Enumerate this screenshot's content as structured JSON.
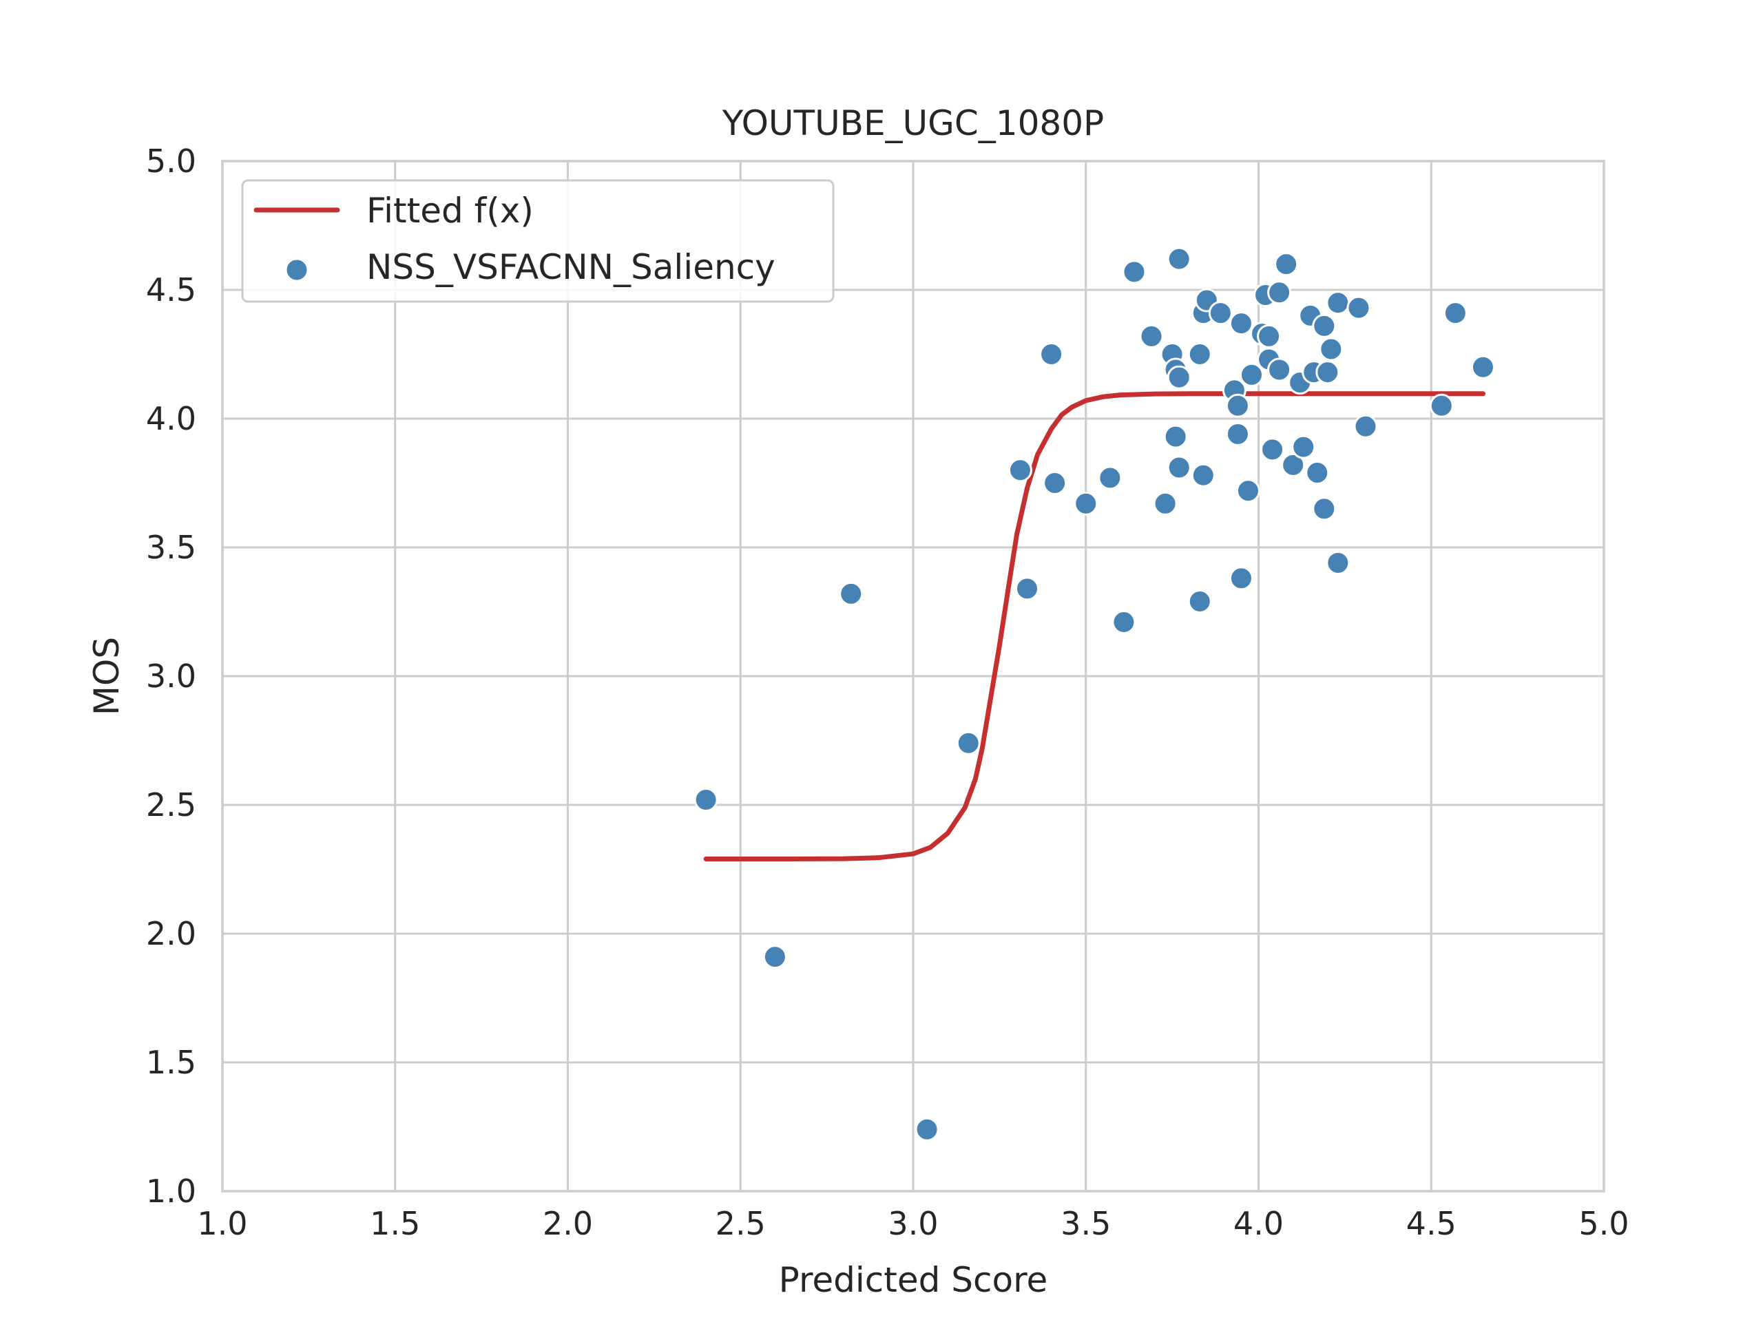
{
  "chart_data": {
    "type": "scatter",
    "title": "YOUTUBE_UGC_1080P",
    "xlabel": "Predicted Score",
    "ylabel": "MOS",
    "xlim": [
      1.0,
      5.0
    ],
    "ylim": [
      1.0,
      5.0
    ],
    "xticks": [
      "1.0",
      "1.5",
      "2.0",
      "2.5",
      "3.0",
      "3.5",
      "4.0",
      "4.5",
      "5.0"
    ],
    "yticks": [
      "1.0",
      "1.5",
      "2.0",
      "2.5",
      "3.0",
      "3.5",
      "4.0",
      "4.5",
      "5.0"
    ],
    "grid": true,
    "legend_position": "top-left",
    "colors": {
      "fit": "#c62f2f",
      "points": "#4682b4",
      "point_edge": "#ffffff"
    },
    "fit": {
      "name": "Fitted f(x)",
      "x": [
        2.4,
        2.6,
        2.8,
        2.9,
        3.0,
        3.05,
        3.1,
        3.15,
        3.18,
        3.2,
        3.22,
        3.25,
        3.28,
        3.3,
        3.33,
        3.36,
        3.4,
        3.43,
        3.46,
        3.5,
        3.55,
        3.6,
        3.7,
        3.8,
        4.0,
        4.2,
        4.4,
        4.65
      ],
      "y": [
        2.29,
        2.29,
        2.291,
        2.295,
        2.31,
        2.335,
        2.39,
        2.49,
        2.6,
        2.72,
        2.88,
        3.12,
        3.38,
        3.55,
        3.73,
        3.86,
        3.96,
        4.015,
        4.045,
        4.07,
        4.085,
        4.092,
        4.096,
        4.097,
        4.097,
        4.097,
        4.097,
        4.097
      ]
    },
    "series": [
      {
        "name": "NSS_VSFACNN_Saliency",
        "points": [
          [
            2.4,
            2.52
          ],
          [
            2.6,
            1.91
          ],
          [
            2.82,
            3.32
          ],
          [
            3.04,
            1.24
          ],
          [
            3.16,
            2.74
          ],
          [
            3.31,
            3.8
          ],
          [
            3.33,
            3.34
          ],
          [
            3.4,
            4.25
          ],
          [
            3.41,
            3.75
          ],
          [
            3.5,
            3.67
          ],
          [
            3.57,
            3.77
          ],
          [
            3.61,
            3.21
          ],
          [
            3.64,
            4.57
          ],
          [
            3.69,
            4.32
          ],
          [
            3.73,
            3.67
          ],
          [
            3.75,
            4.25
          ],
          [
            3.76,
            4.19
          ],
          [
            3.76,
            3.93
          ],
          [
            3.77,
            4.16
          ],
          [
            3.77,
            3.81
          ],
          [
            3.77,
            4.62
          ],
          [
            3.83,
            4.25
          ],
          [
            3.83,
            3.29
          ],
          [
            3.84,
            4.41
          ],
          [
            3.84,
            3.78
          ],
          [
            3.85,
            4.46
          ],
          [
            3.89,
            4.41
          ],
          [
            3.93,
            4.11
          ],
          [
            3.94,
            4.05
          ],
          [
            3.94,
            3.94
          ],
          [
            3.95,
            3.38
          ],
          [
            3.95,
            4.37
          ],
          [
            3.97,
            3.72
          ],
          [
            3.98,
            4.17
          ],
          [
            4.01,
            4.33
          ],
          [
            4.02,
            4.48
          ],
          [
            4.03,
            4.32
          ],
          [
            4.03,
            4.23
          ],
          [
            4.04,
            3.88
          ],
          [
            4.06,
            4.19
          ],
          [
            4.06,
            4.49
          ],
          [
            4.08,
            4.6
          ],
          [
            4.1,
            3.82
          ],
          [
            4.12,
            4.14
          ],
          [
            4.13,
            3.89
          ],
          [
            4.15,
            4.4
          ],
          [
            4.16,
            4.18
          ],
          [
            4.17,
            3.79
          ],
          [
            4.19,
            3.65
          ],
          [
            4.19,
            4.36
          ],
          [
            4.2,
            4.18
          ],
          [
            4.21,
            4.27
          ],
          [
            4.23,
            3.44
          ],
          [
            4.23,
            4.45
          ],
          [
            4.29,
            4.43
          ],
          [
            4.31,
            3.97
          ],
          [
            4.53,
            4.05
          ],
          [
            4.57,
            4.41
          ],
          [
            4.65,
            4.2
          ]
        ]
      }
    ]
  }
}
